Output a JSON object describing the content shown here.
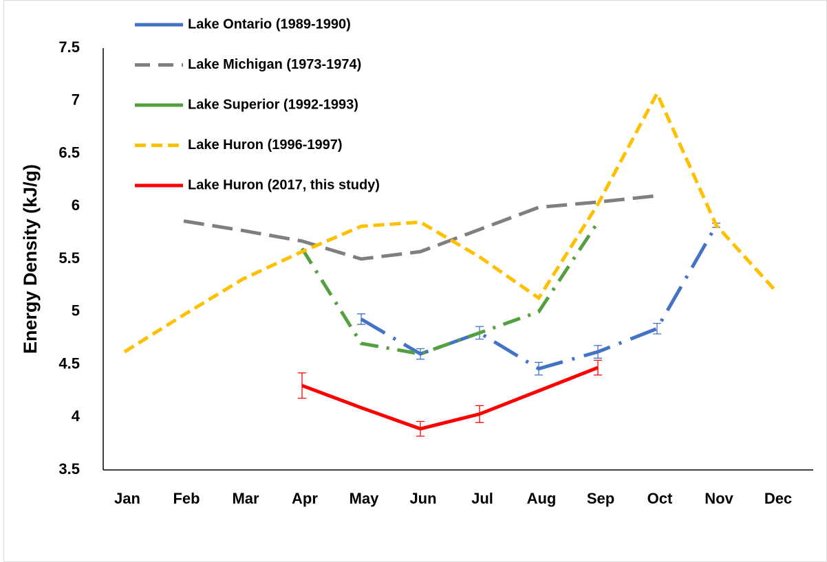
{
  "chart_data": {
    "type": "line",
    "y_label": "Energy Density (kJ/g)",
    "categories": [
      "Jan",
      "Feb",
      "Mar",
      "Apr",
      "May",
      "Jun",
      "Jul",
      "Aug",
      "Sep",
      "Oct",
      "Nov",
      "Dec"
    ],
    "ylim": [
      3.5,
      7.5
    ],
    "yticks": [
      3.5,
      4,
      4.5,
      5,
      5.5,
      6,
      6.5,
      7,
      7.5
    ],
    "grid": false,
    "legend": "top-left",
    "series": [
      {
        "name": "Lake Ontario (1989-1990)",
        "color": "#4472c4",
        "dash": "dash-dot-long",
        "values": [
          null,
          null,
          null,
          null,
          4.93,
          4.6,
          4.8,
          4.46,
          4.62,
          4.84,
          5.82,
          null
        ],
        "errors": [
          null,
          null,
          null,
          null,
          0.05,
          0.05,
          0.06,
          0.06,
          0.06,
          0.05,
          0.02,
          null
        ]
      },
      {
        "name": "Lake Michigan (1973-1974)",
        "color": "#7f7f7f",
        "dash": "long-dash",
        "values": [
          null,
          5.86,
          5.77,
          5.67,
          5.5,
          5.57,
          5.78,
          5.99,
          6.04,
          6.1,
          null,
          null
        ]
      },
      {
        "name": "Lake Superior (1992-1993)",
        "color": "#54a040",
        "dash": "dash-dot",
        "values": [
          null,
          null,
          null,
          5.6,
          4.7,
          4.6,
          4.8,
          5.0,
          5.85,
          null,
          null,
          null
        ]
      },
      {
        "name": "Lake Huron (1996-1997)",
        "color": "#ffc000",
        "dash": "dash",
        "values": [
          4.62,
          4.97,
          5.31,
          5.57,
          5.81,
          5.85,
          5.52,
          5.13,
          6.02,
          7.07,
          5.82,
          5.2
        ]
      },
      {
        "name": "Lake Huron (2017, this study)",
        "color": "#ff0000",
        "dash": "solid",
        "values": [
          null,
          null,
          null,
          4.3,
          4.09,
          3.89,
          4.03,
          4.25,
          4.47,
          null,
          null,
          null
        ],
        "errors": [
          null,
          null,
          null,
          0.12,
          null,
          0.07,
          0.08,
          null,
          0.07,
          null,
          null,
          null
        ]
      }
    ]
  }
}
